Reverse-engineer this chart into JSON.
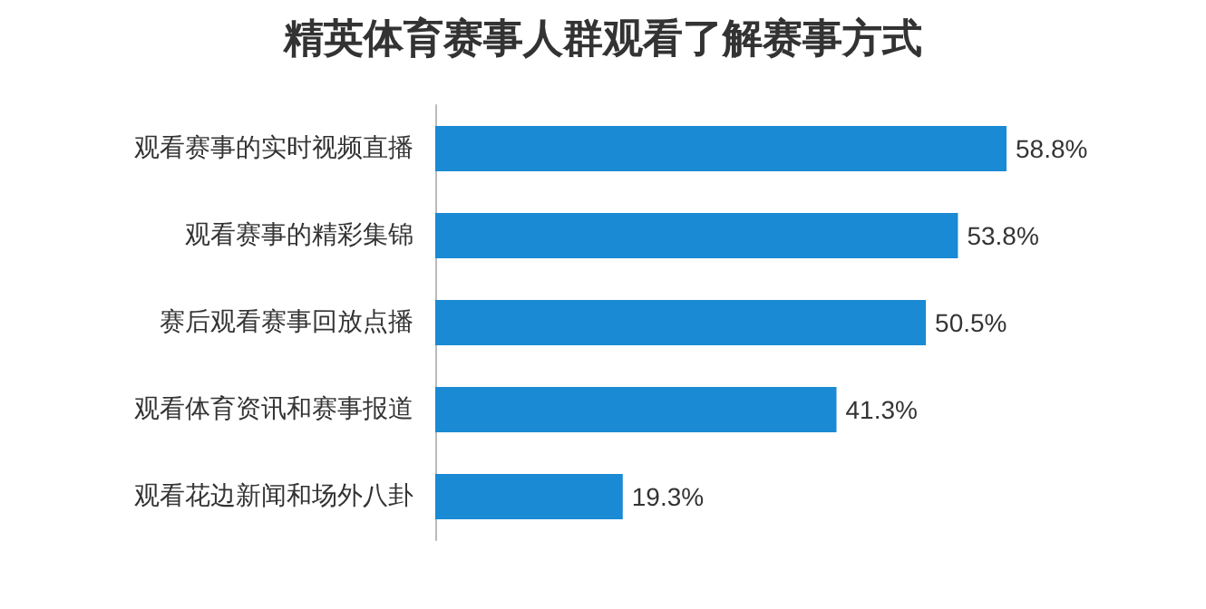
{
  "chart_data": {
    "type": "bar",
    "orientation": "horizontal",
    "title": "精英体育赛事人群观看了解赛事方式",
    "categories": [
      "观看赛事的实时视频直播",
      "观看赛事的精彩集锦",
      "赛后观看赛事回放点播",
      "观看体育资讯和赛事报道",
      "观看花边新闻和场外八卦"
    ],
    "values": [
      58.8,
      53.8,
      50.5,
      41.3,
      19.3
    ],
    "value_labels": [
      "58.8%",
      "53.8%",
      "50.5%",
      "41.3%",
      "19.3%"
    ],
    "color": "#1a8ad4",
    "tick_labels": "y"
  }
}
